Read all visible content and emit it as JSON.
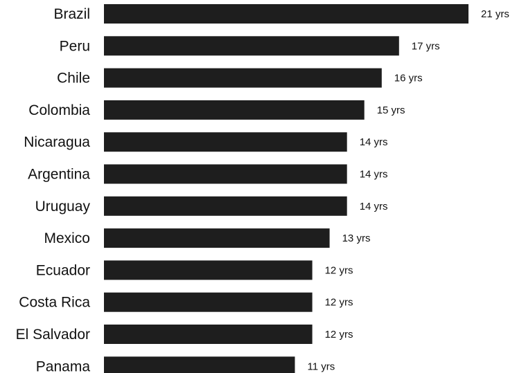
{
  "chart_data": {
    "type": "bar",
    "orientation": "horizontal",
    "categories": [
      "Brazil",
      "Peru",
      "Chile",
      "Colombia",
      "Nicaragua",
      "Argentina",
      "Uruguay",
      "Mexico",
      "Ecuador",
      "Costa Rica",
      "El Salvador",
      "Panama"
    ],
    "values": [
      21,
      17,
      16,
      15,
      14,
      14,
      14,
      13,
      12,
      12,
      12,
      11
    ],
    "value_labels": [
      "21 yrs",
      "17 yrs",
      "16 yrs",
      "15 yrs",
      "14 yrs",
      "14 yrs",
      "14 yrs",
      "13 yrs",
      "12 yrs",
      "12 yrs",
      "12 yrs",
      "11 yrs"
    ],
    "bar_color": "#1e1e1e",
    "xlim": [
      0,
      21
    ],
    "grid": false,
    "legend": "none"
  }
}
